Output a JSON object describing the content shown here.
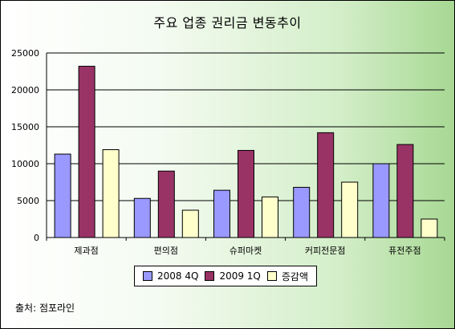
{
  "chart_data": {
    "type": "bar",
    "title": "주요 업종 권리금 변동추이",
    "categories": [
      "제과점",
      "편의점",
      "슈퍼마켓",
      "커피전문점",
      "퓨전주점"
    ],
    "series": [
      {
        "name": "2008 4Q",
        "values": [
          11300,
          5300,
          6400,
          6800,
          10000
        ],
        "color": "#9999ff"
      },
      {
        "name": "2009 1Q",
        "values": [
          23200,
          9000,
          11800,
          14200,
          12600
        ],
        "color": "#993366"
      },
      {
        "name": "증감액",
        "values": [
          11900,
          3700,
          5500,
          7500,
          2500
        ],
        "color": "#ffffcc"
      }
    ],
    "yticks": [
      "0",
      "5000",
      "10000",
      "15000",
      "20000",
      "25000"
    ],
    "ylim": [
      0,
      25000
    ],
    "grid": true,
    "legend_position": "bottom"
  },
  "source": "출처: 점포라인"
}
